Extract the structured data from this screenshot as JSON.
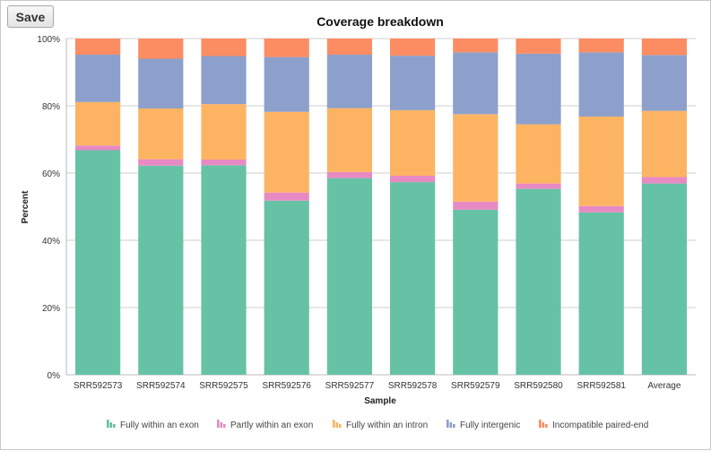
{
  "toolbar": {
    "save_label": "Save"
  },
  "chart_data": {
    "type": "bar",
    "stacked": true,
    "title": "Coverage breakdown",
    "xlabel": "Sample",
    "ylabel": "Percent",
    "ylim": [
      0,
      100
    ],
    "yticks": [
      0,
      20,
      40,
      60,
      80,
      100
    ],
    "ytick_labels": [
      "0%",
      "20%",
      "40%",
      "60%",
      "80%",
      "100%"
    ],
    "grid": true,
    "legend_position": "bottom",
    "categories": [
      "SRR592573",
      "SRR592574",
      "SRR592575",
      "SRR592576",
      "SRR592577",
      "SRR592578",
      "SRR592579",
      "SRR592580",
      "SRR592581",
      "Average"
    ],
    "series": [
      {
        "name": "Fully within an exon",
        "color": "#66c2a5",
        "values": [
          66.8,
          62.2,
          62.3,
          51.8,
          58.5,
          57.3,
          49.1,
          55.3,
          48.3,
          56.9
        ]
      },
      {
        "name": "Partly within an exon",
        "color": "#e78ac3",
        "values": [
          1.4,
          1.9,
          1.7,
          2.4,
          1.8,
          1.9,
          2.4,
          1.6,
          1.9,
          1.9
        ]
      },
      {
        "name": "Fully within an intron",
        "color": "#fdb462",
        "values": [
          12.9,
          15.1,
          16.5,
          24.0,
          19.0,
          19.5,
          26.0,
          17.6,
          26.6,
          19.7
        ]
      },
      {
        "name": "Fully intergenic",
        "color": "#8da0cb",
        "values": [
          14.1,
          14.8,
          14.3,
          16.3,
          15.9,
          16.2,
          18.4,
          21.0,
          19.1,
          16.6
        ]
      },
      {
        "name": "Incompatible paired-end",
        "color": "#fc8d62",
        "values": [
          4.8,
          6.0,
          5.2,
          5.5,
          4.8,
          5.1,
          4.1,
          4.5,
          4.1,
          4.9
        ]
      }
    ]
  }
}
